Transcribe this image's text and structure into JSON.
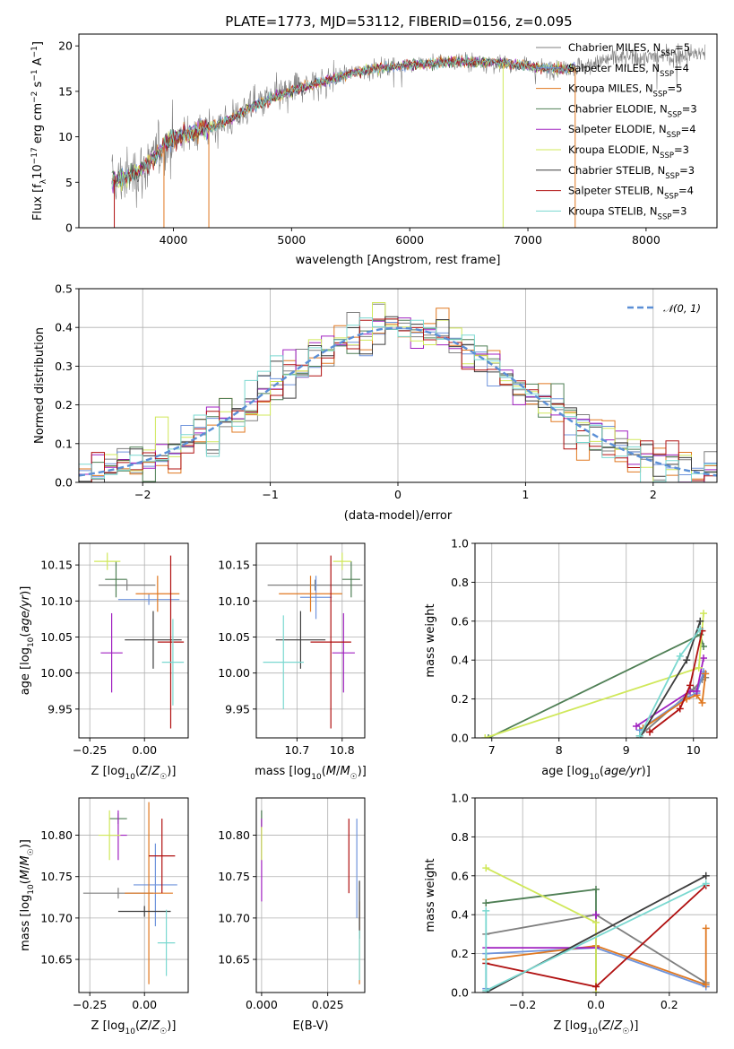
{
  "figure": {
    "title": "PLATE=1773, MJD=53112, FIBERID=0156, z=0.095"
  },
  "models": [
    {
      "name": "Chabrier MILES",
      "nssp": 5,
      "color": "#7f7f7f"
    },
    {
      "name": "Salpeter MILES",
      "nssp": 4,
      "color": "#6f94dc"
    },
    {
      "name": "Kroupa MILES",
      "nssp": 5,
      "color": "#e07820"
    },
    {
      "name": "Chabrier ELODIE",
      "nssp": 3,
      "color": "#4f7f55"
    },
    {
      "name": "Salpeter ELODIE",
      "nssp": 4,
      "color": "#a020c0"
    },
    {
      "name": "Kroupa ELODIE",
      "nssp": 3,
      "color": "#d0e85a"
    },
    {
      "name": "Chabrier STELIB",
      "nssp": 3,
      "color": "#3d3d3d"
    },
    {
      "name": "Salpeter STELIB",
      "nssp": 4,
      "color": "#b01010"
    },
    {
      "name": "Kroupa STELIB",
      "nssp": 3,
      "color": "#7ad8d0"
    }
  ],
  "chart_data": [
    {
      "id": "spectrum",
      "type": "line",
      "xlabel": "wavelength [Angstrom, rest frame]",
      "ylabel": "Flux [f_λ 10^-17 erg cm^-2 s^-1 A^-1]",
      "xlim": [
        3200,
        8600
      ],
      "ylim": [
        0,
        21.3
      ],
      "xticks": [
        4000,
        5000,
        6000,
        7000,
        8000
      ],
      "yticks": [
        0,
        5,
        10,
        15,
        20
      ],
      "continuum": [
        [
          3480,
          5.2
        ],
        [
          3600,
          5.5
        ],
        [
          3800,
          7.0
        ],
        [
          3950,
          9.6
        ],
        [
          4100,
          10.3
        ],
        [
          4300,
          11.0
        ],
        [
          4500,
          12.0
        ],
        [
          4700,
          13.5
        ],
        [
          4900,
          14.6
        ],
        [
          5100,
          15.5
        ],
        [
          5300,
          16.2
        ],
        [
          5500,
          17.0
        ],
        [
          5700,
          17.5
        ],
        [
          5900,
          17.8
        ],
        [
          6100,
          18.0
        ],
        [
          6300,
          18.2
        ],
        [
          6500,
          18.3
        ],
        [
          6700,
          18.2
        ],
        [
          6900,
          18.0
        ],
        [
          7100,
          17.6
        ],
        [
          7300,
          17.5
        ],
        [
          7500,
          17.8
        ],
        [
          7700,
          18.6
        ],
        [
          7900,
          18.8
        ],
        [
          8100,
          18.8
        ],
        [
          8300,
          19.0
        ],
        [
          8500,
          19.2
        ]
      ],
      "features": [
        3500,
        3920,
        4300,
        6790,
        7400
      ],
      "legend_position": "upper right",
      "grid": false
    },
    {
      "id": "residual-histogram",
      "type": "line",
      "xlabel": "(data-model)/error",
      "ylabel": "Normed distribution",
      "xlim": [
        -2.5,
        2.5
      ],
      "ylim": [
        0,
        0.5
      ],
      "xticks": [
        -2,
        -1,
        0,
        1,
        2
      ],
      "yticks": [
        0.0,
        0.1,
        0.2,
        0.3,
        0.4,
        0.5
      ],
      "bin_width": 0.1,
      "reference_curve": "𝒩(0, 1)",
      "reference_color": "#5b8fd6",
      "legend_position": "upper right",
      "grid": true
    },
    {
      "id": "age-vs-Z",
      "type": "scatter",
      "xlabel": "Z [log10(Z/Z☉)]",
      "ylabel": "age [log10(age/yr)]",
      "xlim": [
        -0.3,
        0.2
      ],
      "ylim": [
        9.91,
        10.18
      ],
      "xticks": [
        -0.25,
        0.0
      ],
      "yticks": [
        9.95,
        10.0,
        10.05,
        10.1,
        10.15
      ],
      "grid": true,
      "points": [
        {
          "x": -0.08,
          "y": 10.122,
          "xerr": 0.13,
          "yerr": 0.0,
          "model": 0
        },
        {
          "x": 0.02,
          "y": 10.102,
          "xerr": 0.14,
          "yerr": 0.0,
          "model": 1
        },
        {
          "x": 0.06,
          "y": 10.11,
          "xerr": 0.1,
          "yerr": 0.025,
          "model": 2
        },
        {
          "x": -0.13,
          "y": 10.13,
          "xerr": 0.05,
          "yerr": 0.025,
          "model": 3
        },
        {
          "x": -0.15,
          "y": 10.028,
          "xerr": 0.05,
          "yerr": 0.055,
          "model": 4
        },
        {
          "x": -0.17,
          "y": 10.155,
          "xerr": 0.06,
          "yerr": 0.012,
          "model": 5
        },
        {
          "x": 0.04,
          "y": 10.046,
          "xerr": 0.13,
          "yerr": 0.04,
          "model": 6
        },
        {
          "x": 0.12,
          "y": 10.043,
          "xerr": 0.06,
          "yerr": 0.12,
          "model": 7
        },
        {
          "x": 0.13,
          "y": 10.015,
          "xerr": 0.05,
          "yerr": 0.06,
          "model": 8
        }
      ]
    },
    {
      "id": "age-vs-mass",
      "type": "scatter",
      "xlabel": "mass [log10(M/M☉)]",
      "ylabel": "",
      "xlim": [
        10.61,
        10.85
      ],
      "ylim": [
        9.91,
        10.18
      ],
      "xticks": [
        10.7,
        10.8
      ],
      "yticks": [
        9.95,
        10.0,
        10.05,
        10.1,
        10.15
      ],
      "grid": true,
      "points": [
        {
          "x": 10.74,
          "y": 10.122,
          "xerr": 0.105,
          "yerr": 0.0,
          "model": 0
        },
        {
          "x": 10.742,
          "y": 10.105,
          "xerr": 0.035,
          "yerr": 0.03,
          "model": 1
        },
        {
          "x": 10.73,
          "y": 10.11,
          "xerr": 0.07,
          "yerr": 0.025,
          "model": 2
        },
        {
          "x": 10.82,
          "y": 10.13,
          "xerr": 0.02,
          "yerr": 0.025,
          "model": 3
        },
        {
          "x": 10.803,
          "y": 10.028,
          "xerr": 0.025,
          "yerr": 0.055,
          "model": 4
        },
        {
          "x": 10.8,
          "y": 10.155,
          "xerr": 0.02,
          "yerr": 0.012,
          "model": 5
        },
        {
          "x": 10.708,
          "y": 10.046,
          "xerr": 0.055,
          "yerr": 0.04,
          "model": 6
        },
        {
          "x": 10.775,
          "y": 10.043,
          "xerr": 0.045,
          "yerr": 0.12,
          "model": 7
        },
        {
          "x": 10.67,
          "y": 10.015,
          "xerr": 0.045,
          "yerr": 0.065,
          "model": 8
        }
      ]
    },
    {
      "id": "massweight-vs-age",
      "type": "line",
      "xlabel": "age [log10(age/yr)]",
      "ylabel": "mass weight",
      "xlim": [
        6.75,
        10.35
      ],
      "ylim": [
        0,
        1
      ],
      "xticks": [
        7,
        8,
        9,
        10
      ],
      "yticks": [
        0.0,
        0.2,
        0.4,
        0.6,
        0.8,
        1.0
      ],
      "grid": true,
      "series": [
        {
          "model": 0,
          "x": [
            9.2,
            10.0,
            10.13,
            10.15,
            10.18
          ],
          "y": [
            0.01,
            0.25,
            0.3,
            0.33,
            0.31
          ]
        },
        {
          "model": 1,
          "x": [
            9.2,
            9.9,
            10.05,
            10.15
          ],
          "y": [
            0.04,
            0.21,
            0.23,
            0.34
          ]
        },
        {
          "model": 2,
          "x": [
            9.25,
            9.9,
            10.05,
            10.13,
            10.18
          ],
          "y": [
            0.05,
            0.2,
            0.22,
            0.18,
            0.33
          ]
        },
        {
          "model": 3,
          "x": [
            6.95,
            10.1,
            10.15
          ],
          "y": [
            0.0,
            0.53,
            0.47
          ]
        },
        {
          "model": 4,
          "x": [
            9.15,
            9.95,
            10.05,
            10.15
          ],
          "y": [
            0.06,
            0.24,
            0.24,
            0.41
          ]
        },
        {
          "model": 5,
          "x": [
            6.9,
            10.08,
            10.15
          ],
          "y": [
            0.0,
            0.36,
            0.64
          ]
        },
        {
          "model": 6,
          "x": [
            9.2,
            9.9,
            10.1
          ],
          "y": [
            0.0,
            0.4,
            0.6
          ]
        },
        {
          "model": 7,
          "x": [
            9.35,
            9.8,
            9.95,
            10.13
          ],
          "y": [
            0.03,
            0.15,
            0.27,
            0.55
          ]
        },
        {
          "model": 8,
          "x": [
            9.2,
            9.8,
            10.1
          ],
          "y": [
            0.01,
            0.42,
            0.56
          ]
        }
      ]
    },
    {
      "id": "mass-vs-Z",
      "type": "scatter",
      "xlabel": "Z [log10(Z/Z☉)]",
      "ylabel": "mass [log10(M/M☉)]",
      "xlim": [
        -0.3,
        0.2
      ],
      "ylim": [
        10.61,
        10.845
      ],
      "xticks": [
        -0.25,
        0.0
      ],
      "yticks": [
        10.65,
        10.7,
        10.75,
        10.8
      ],
      "grid": true,
      "points": [
        {
          "x": -0.12,
          "y": 10.73,
          "xerr": 0.16,
          "yerr": 0.0,
          "model": 0
        },
        {
          "x": 0.05,
          "y": 10.74,
          "xerr": 0.1,
          "yerr": 0.05,
          "model": 1
        },
        {
          "x": 0.02,
          "y": 10.73,
          "xerr": 0.11,
          "yerr": 0.11,
          "model": 2
        },
        {
          "x": -0.12,
          "y": 10.82,
          "xerr": 0.04,
          "yerr": 0.0,
          "model": 3
        },
        {
          "x": -0.12,
          "y": 10.8,
          "xerr": 0.04,
          "yerr": 0.03,
          "model": 4
        },
        {
          "x": -0.16,
          "y": 10.8,
          "xerr": 0.05,
          "yerr": 0.03,
          "model": 5
        },
        {
          "x": 0.0,
          "y": 10.708,
          "xerr": 0.12,
          "yerr": 0.0,
          "model": 6
        },
        {
          "x": 0.08,
          "y": 10.775,
          "xerr": 0.06,
          "yerr": 0.045,
          "model": 7
        },
        {
          "x": 0.1,
          "y": 10.67,
          "xerr": 0.04,
          "yerr": 0.04,
          "model": 8
        }
      ]
    },
    {
      "id": "mass-vs-EBV",
      "type": "scatter",
      "xlabel": "E(B-V)",
      "ylabel": "",
      "xlim": [
        -0.002,
        0.039
      ],
      "ylim": [
        10.61,
        10.845
      ],
      "xticks": [
        0.0,
        0.025
      ],
      "yticks": [
        10.65,
        10.7,
        10.75,
        10.8
      ],
      "grid": true,
      "points": [
        {
          "x": 0.0,
          "y": 10.8,
          "xerr": 0.0,
          "yerr": 0.03,
          "model": 0
        },
        {
          "x": 0.036,
          "y": 10.76,
          "xerr": 0.0,
          "yerr": 0.06,
          "model": 1
        },
        {
          "x": 0.037,
          "y": 10.67,
          "xerr": 0.0,
          "yerr": 0.05,
          "model": 2
        },
        {
          "x": 0.0,
          "y": 10.82,
          "xerr": 0.0,
          "yerr": 0.01,
          "model": 3
        },
        {
          "x": 0.0,
          "y": 10.77,
          "xerr": 0.0,
          "yerr": 0.05,
          "model": 4
        },
        {
          "x": 0.0,
          "y": 10.79,
          "xerr": 0.0,
          "yerr": 0.02,
          "model": 5
        },
        {
          "x": 0.037,
          "y": 10.71,
          "xerr": 0.0,
          "yerr": 0.035,
          "model": 6
        },
        {
          "x": 0.033,
          "y": 10.775,
          "xerr": 0.0,
          "yerr": 0.045,
          "model": 7
        },
        {
          "x": 0.037,
          "y": 10.655,
          "xerr": 0.0,
          "yerr": 0.03,
          "model": 8
        }
      ]
    },
    {
      "id": "massweight-vs-Z",
      "type": "line",
      "xlabel": "Z [log10(Z/Z☉)]",
      "ylabel": "mass weight",
      "xlim": [
        -0.33,
        0.33
      ],
      "ylim": [
        0,
        1
      ],
      "xticks": [
        -0.2,
        0.0,
        0.2
      ],
      "yticks": [
        0.0,
        0.2,
        0.4,
        0.6,
        0.8,
        1.0
      ],
      "grid": true,
      "series": [
        {
          "model": 0,
          "x": [
            -0.3,
            0.0,
            0.3
          ],
          "y": [
            0.3,
            0.4,
            0.05
          ]
        },
        {
          "model": 1,
          "x": [
            -0.3,
            -0.3,
            0.0,
            0.3
          ],
          "y": [
            0.02,
            0.2,
            0.23,
            0.03
          ]
        },
        {
          "model": 2,
          "x": [
            -0.3,
            0.0,
            0.3,
            0.3
          ],
          "y": [
            0.17,
            0.24,
            0.04,
            0.33
          ]
        },
        {
          "model": 3,
          "x": [
            -0.3,
            0.0,
            0.0
          ],
          "y": [
            0.46,
            0.53,
            0.0
          ]
        },
        {
          "model": 4,
          "x": [
            -0.3,
            0.0,
            0.0
          ],
          "y": [
            0.23,
            0.23,
            0.4
          ]
        },
        {
          "model": 5,
          "x": [
            -0.3,
            0.0,
            0.0
          ],
          "y": [
            0.64,
            0.36,
            0.0
          ]
        },
        {
          "model": 6,
          "x": [
            -0.3,
            0.3
          ],
          "y": [
            0.0,
            0.6
          ]
        },
        {
          "model": 7,
          "x": [
            -0.3,
            0.0,
            0.3
          ],
          "y": [
            0.15,
            0.03,
            0.55
          ]
        },
        {
          "model": 8,
          "x": [
            -0.3,
            -0.3,
            0.3
          ],
          "y": [
            0.42,
            0.01,
            0.56
          ]
        }
      ]
    }
  ]
}
